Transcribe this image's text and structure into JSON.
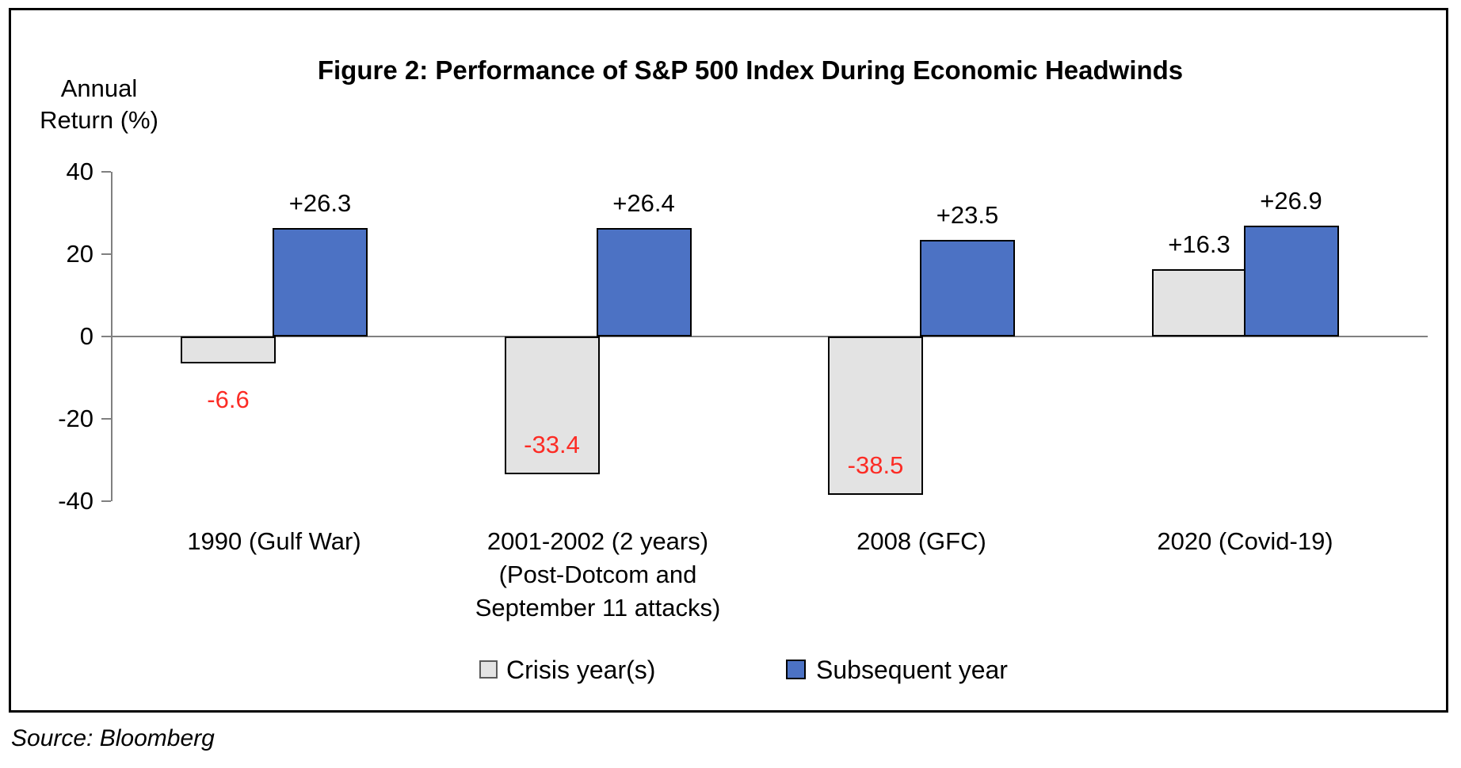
{
  "page": {
    "title": "Figure 2: Performance of S&P 500 Index During Economic Headwinds",
    "source": "Source: Bloomberg"
  },
  "axis": {
    "label_line1": "Annual",
    "label_line2": "Return (%)"
  },
  "legend": {
    "crisis_label": "Crisis year(s)",
    "subsequent_label": "Subsequent year"
  },
  "colors": {
    "crisis_fill": "#E3E3E3",
    "subsequent_fill": "#4C72C4",
    "bar_border": "#000000",
    "axis_gray": "#808080",
    "negative_label_red": "#FC2C25",
    "positive_label_black": "#000000"
  },
  "chart_data": {
    "type": "bar",
    "title": "Figure 2: Performance of S&P 500 Index During Economic Headwinds",
    "xlabel": "",
    "ylabel": "Annual Return (%)",
    "ylim": [
      -40,
      40
    ],
    "yticks": [
      40,
      20,
      0,
      -20,
      -40
    ],
    "grid": false,
    "legend_position": "bottom",
    "categories": [
      [
        "1990 (Gulf War)"
      ],
      [
        "2001-2002 (2 years)",
        "(Post-Dotcom and",
        "September 11 attacks)"
      ],
      [
        "2008 (GFC)"
      ],
      [
        "2020 (Covid-19)"
      ]
    ],
    "series": [
      {
        "name": "Crisis year(s)",
        "values": [
          -6.6,
          -33.4,
          -38.5,
          16.3
        ],
        "labels": [
          "-6.6",
          "-33.4",
          "-38.5",
          "+16.3"
        ],
        "label_placement": [
          "below",
          "inside",
          "inside",
          "above"
        ]
      },
      {
        "name": "Subsequent year",
        "values": [
          26.3,
          26.4,
          23.5,
          26.9
        ],
        "labels": [
          "+26.3",
          "+26.4",
          "+23.5",
          "+26.9"
        ],
        "label_placement": [
          "above",
          "above",
          "above",
          "above"
        ]
      }
    ]
  }
}
